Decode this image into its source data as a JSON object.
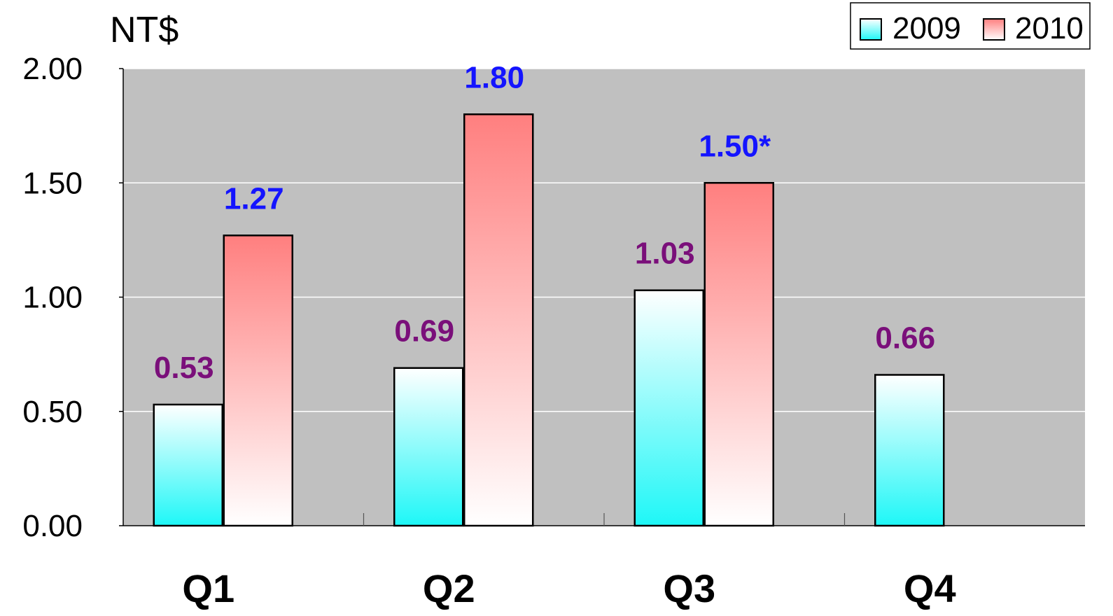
{
  "chart_data": {
    "type": "bar",
    "unit_label": "NT$",
    "categories": [
      "Q1",
      "Q2",
      "Q3",
      "Q4"
    ],
    "ylim": [
      0,
      2
    ],
    "y_ticks": [
      "0.00",
      "0.50",
      "1.00",
      "1.50",
      "2.00"
    ],
    "grid": true,
    "legend_position": "top-right",
    "series": [
      {
        "name": "2009",
        "values": [
          0.53,
          0.69,
          1.03,
          0.66
        ],
        "labels": [
          "0.53",
          "0.69",
          "1.03",
          "0.66"
        ],
        "label_color": "#7a0f7a",
        "gradient_top": "#ffffff",
        "gradient_bottom": "#1ef7f7"
      },
      {
        "name": "2010",
        "values": [
          1.27,
          1.8,
          1.5,
          null
        ],
        "labels": [
          "1.27",
          "1.80",
          "1.50*",
          ""
        ],
        "label_color": "#1414ff",
        "gradient_top": "#ff7f7f",
        "gradient_bottom": "#ffffff"
      }
    ],
    "colors": {
      "plot_background": "#c0c0c0",
      "gridline": "#ffffff",
      "bar_outline": "#000000"
    }
  }
}
